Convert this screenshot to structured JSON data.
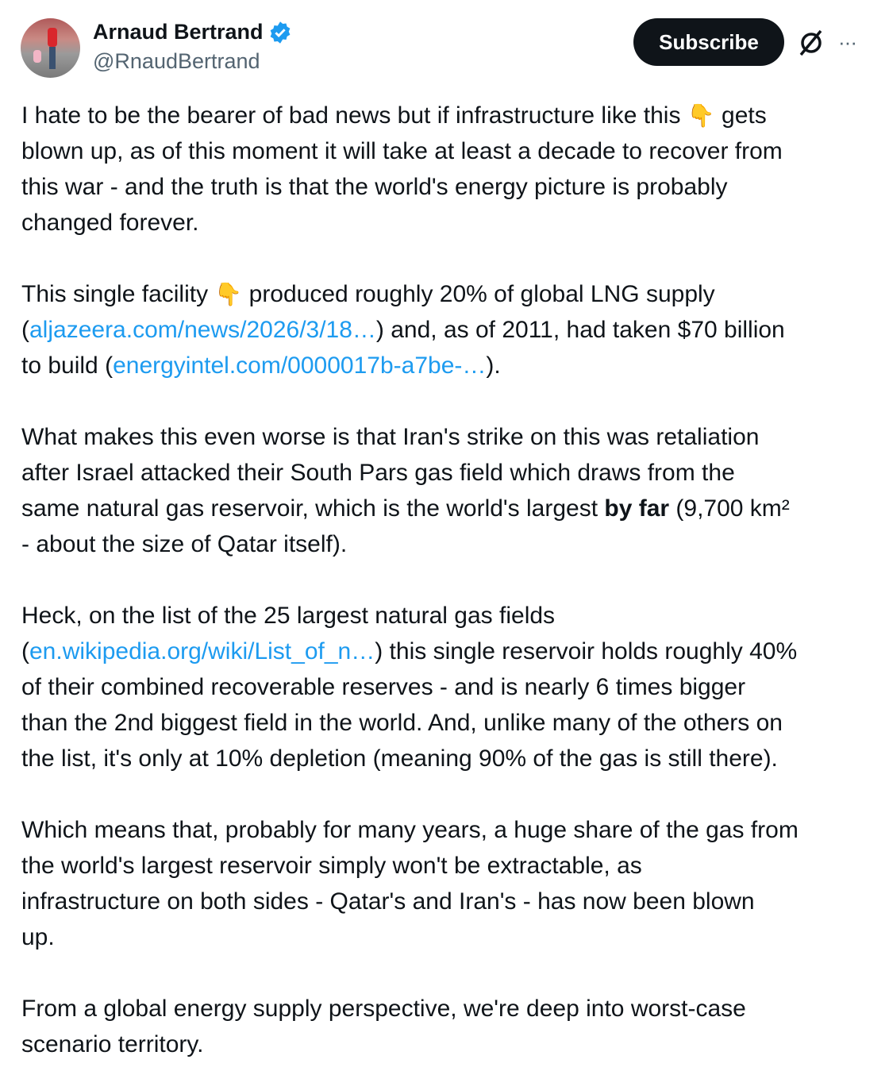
{
  "author": {
    "name": "Arnaud Bertrand",
    "handle": "@RnaudBertrand",
    "verified": true
  },
  "actions": {
    "subscribe_label": "Subscribe",
    "grok_icon": "grok-icon",
    "more_label": "···"
  },
  "colors": {
    "link": "#1d9bf0",
    "verified": "#1d9bf0",
    "button": "#0f1419"
  },
  "paragraphs": [
    [
      [
        {
          "t": "I hate to be the bearer of bad news but if infrastructure like this "
        },
        {
          "t": "👇",
          "k": "emoji"
        },
        {
          "t": " gets"
        }
      ],
      [
        {
          "t": "blown up, as of this moment it will take at least a decade to recover from"
        }
      ],
      [
        {
          "t": "this war - and the truth is that the world's energy picture is probably"
        }
      ],
      [
        {
          "t": "changed forever."
        }
      ]
    ],
    [
      [
        {
          "t": "This single facility "
        },
        {
          "t": "👇",
          "k": "emoji"
        },
        {
          "t": " produced roughly 20% of global LNG supply"
        }
      ],
      [
        {
          "t": "("
        },
        {
          "t": "aljazeera.com/news/2026/3/18…",
          "k": "link"
        },
        {
          "t": ") and, as of 2011, had taken $70 billion"
        }
      ],
      [
        {
          "t": "to build ("
        },
        {
          "t": "energyintel.com/0000017b-a7be-…",
          "k": "link"
        },
        {
          "t": ")."
        }
      ]
    ],
    [
      [
        {
          "t": "What makes this even worse is that Iran's strike on this was retaliation"
        }
      ],
      [
        {
          "t": "after Israel attacked their South Pars gas field which draws from the"
        }
      ],
      [
        {
          "t": "same natural gas reservoir, which is the world's largest "
        },
        {
          "t": "by far",
          "k": "bold"
        },
        {
          "t": " (9,700 km²"
        }
      ],
      [
        {
          "t": "- about the size of Qatar itself)."
        }
      ]
    ],
    [
      [
        {
          "t": "Heck, on the list of the 25 largest natural gas fields"
        }
      ],
      [
        {
          "t": "("
        },
        {
          "t": "en.wikipedia.org/wiki/List_of_n…",
          "k": "link"
        },
        {
          "t": ") this single reservoir holds roughly 40%"
        }
      ],
      [
        {
          "t": "of their combined recoverable reserves - and is nearly 6 times bigger"
        }
      ],
      [
        {
          "t": "than the 2nd biggest field in the world. And, unlike many of the others on"
        }
      ],
      [
        {
          "t": "the list, it's only at 10% depletion (meaning 90% of the gas is still there)."
        }
      ]
    ],
    [
      [
        {
          "t": "Which means that, probably for many years, a huge share of the gas from"
        }
      ],
      [
        {
          "t": "the world's largest reservoir simply won't be extractable, as"
        }
      ],
      [
        {
          "t": "infrastructure on both sides - Qatar's and Iran's - has now been blown"
        }
      ],
      [
        {
          "t": "up."
        }
      ]
    ],
    [
      [
        {
          "t": "From a global energy supply perspective, we're deep into worst-case"
        }
      ],
      [
        {
          "t": "scenario territory."
        }
      ]
    ]
  ]
}
